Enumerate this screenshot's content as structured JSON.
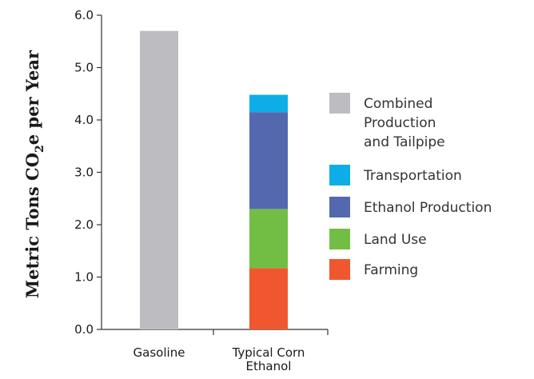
{
  "chart_data": {
    "type": "bar",
    "stacked": true,
    "ylabel_parts": [
      "Metric Tons CO",
      "2",
      "e per Year"
    ],
    "ylim": [
      0,
      6
    ],
    "yticks": [
      "0.0",
      "1.0",
      "2.0",
      "3.0",
      "4.0",
      "5.0",
      "6.0"
    ],
    "categories": [
      "Gasoline",
      "Typical Corn Ethanol"
    ],
    "category_lines": [
      [
        "Gasoline"
      ],
      [
        "Typical Corn",
        "Ethanol"
      ]
    ],
    "series": [
      {
        "name": "Combined Production and Tailpipe",
        "name_lines": [
          "Combined",
          "Production",
          "and Tailpipe"
        ],
        "color": "#bdbdc1",
        "values": [
          5.7,
          0
        ]
      },
      {
        "name": "Farming",
        "name_lines": [
          "Farming"
        ],
        "color": "#f0572f",
        "values": [
          0,
          1.17
        ]
      },
      {
        "name": "Land Use",
        "name_lines": [
          "Land Use"
        ],
        "color": "#72be44",
        "values": [
          0,
          1.13
        ]
      },
      {
        "name": "Ethanol Production",
        "name_lines": [
          "Ethanol Production"
        ],
        "color": "#5468b0",
        "values": [
          0,
          1.85
        ]
      },
      {
        "name": "Transportation",
        "name_lines": [
          "Transportation"
        ],
        "color": "#0daee8",
        "values": [
          0,
          0.33
        ]
      }
    ],
    "legend_order": [
      0,
      4,
      3,
      2,
      1
    ],
    "legend_position": "right",
    "grid": false
  }
}
